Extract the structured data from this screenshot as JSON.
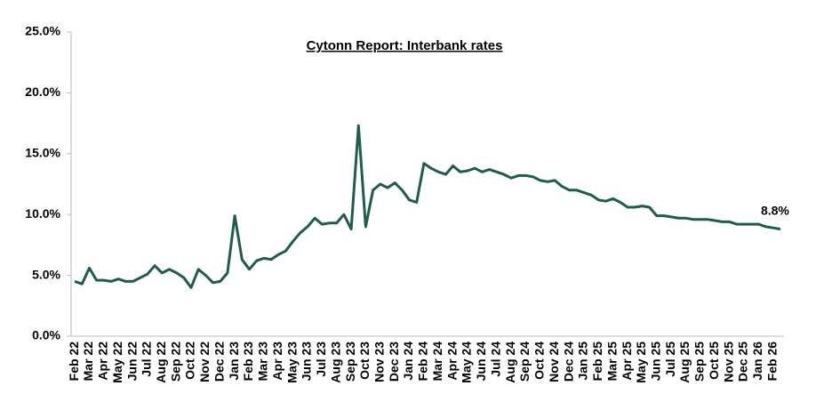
{
  "chart_data": {
    "type": "line",
    "title": "Cytonn Report: Interbank rates",
    "categories": [
      "Feb 22",
      null,
      "Mar 22",
      null,
      "Apr 22",
      null,
      "May 22",
      null,
      "Jun 22",
      null,
      "Jul 22",
      null,
      "Aug 22",
      null,
      "Sep 22",
      null,
      "Oct 22",
      null,
      "Nov 22",
      null,
      "Dec 22",
      null,
      "Jan 23",
      null,
      "Feb 23",
      null,
      "Mar 23",
      null,
      "Apr 23",
      null,
      "May 23",
      null,
      "Jun 23",
      null,
      "Jul 23",
      null,
      "Aug 23",
      null,
      "Sep 23",
      null,
      "Oct 23",
      null,
      "Nov 23",
      null,
      "Dec 23",
      null,
      "Jan 24",
      null,
      "Feb 24",
      null,
      "Mar 24",
      null,
      "Apr 24",
      null,
      "May 24",
      null,
      "Jun 24",
      null,
      "Jul 24",
      null,
      "Aug 24",
      null,
      "Sep 24",
      null,
      "Oct 24",
      null,
      "Nov 24",
      null,
      "Dec 24",
      null,
      "Jan 25",
      null,
      "Feb 25",
      null,
      "Mar 25",
      null,
      "Apr 25",
      null,
      "May 25",
      null,
      "Jun 25",
      null,
      "Jul 25",
      null,
      "Aug 25",
      null,
      "Sep 25",
      null,
      "Oct 25",
      null,
      "Nov 25",
      null,
      "Dec 25",
      null,
      "Jan 26",
      null,
      "Feb 26",
      null
    ],
    "values": [
      4.5,
      4.3,
      5.6,
      4.6,
      4.6,
      4.5,
      4.7,
      4.5,
      4.5,
      4.8,
      5.1,
      5.8,
      5.2,
      5.5,
      5.2,
      4.8,
      4.0,
      5.5,
      5.0,
      4.4,
      4.5,
      5.2,
      9.9,
      6.3,
      5.5,
      6.2,
      6.4,
      6.3,
      6.7,
      7.0,
      7.8,
      8.5,
      9.0,
      9.7,
      9.2,
      9.3,
      9.3,
      10.0,
      8.8,
      17.3,
      9.0,
      12.0,
      12.5,
      12.2,
      12.6,
      12.0,
      11.2,
      11.0,
      14.2,
      13.8,
      13.5,
      13.3,
      14.0,
      13.5,
      13.6,
      13.8,
      13.5,
      13.7,
      13.5,
      13.3,
      13.0,
      13.2,
      13.2,
      13.1,
      12.8,
      12.7,
      12.8,
      12.3,
      12.0,
      12.0,
      11.8,
      11.6,
      11.2,
      11.1,
      11.3,
      11.0,
      10.6,
      10.6,
      10.7,
      10.6,
      9.9,
      9.9,
      9.8,
      9.7,
      9.7,
      9.6,
      9.6,
      9.6,
      9.5,
      9.4,
      9.4,
      9.2,
      9.2,
      9.2,
      9.2,
      9.0,
      8.9,
      8.8
    ],
    "value_labels": [
      null,
      null,
      null,
      null,
      null,
      null,
      null,
      null,
      null,
      null,
      null,
      null,
      null,
      null,
      null,
      null,
      null,
      null,
      null,
      null,
      null,
      null,
      null,
      null,
      null,
      null,
      null,
      null,
      null,
      null,
      null,
      null,
      null,
      null,
      null,
      null,
      null,
      null,
      null,
      null,
      null,
      null,
      null,
      null,
      null,
      null,
      null,
      null,
      null,
      null,
      null,
      null,
      null,
      null,
      null,
      null,
      null,
      null,
      null,
      null,
      null,
      null,
      null,
      null,
      null,
      null,
      null,
      null,
      null,
      null,
      null,
      null,
      null,
      null,
      null,
      null,
      null,
      null,
      null,
      null,
      null,
      null,
      null,
      null,
      null,
      null,
      null,
      null,
      null,
      null,
      null,
      null,
      null,
      null,
      null,
      null,
      null,
      "8.8%"
    ],
    "color": "#1e5e48",
    "ylim": [
      0,
      25
    ],
    "yticks": [
      {
        "value": 0,
        "label": "0.0%"
      },
      {
        "value": 5,
        "label": "5.0%"
      },
      {
        "value": 10,
        "label": "10.0%"
      },
      {
        "value": 15,
        "label": "15.0%"
      },
      {
        "value": 20,
        "label": "20.0%"
      },
      {
        "value": 25,
        "label": "25.0%"
      }
    ],
    "grid": false
  }
}
